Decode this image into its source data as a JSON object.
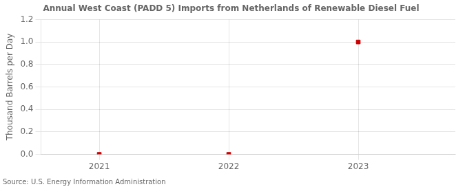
{
  "chart_data": {
    "type": "scatter",
    "title": "Annual West Coast (PADD 5) Imports from Netherlands of Renewable Diesel Fuel",
    "ylabel": "Thousand Barrels per Day",
    "annotations": [
      "Source: U.S. Energy Information Administration"
    ],
    "x": [
      2021,
      2022,
      2023
    ],
    "values": [
      0.0,
      0.0,
      1.0
    ],
    "color": "#cc0000",
    "marker": "square",
    "xlim": [
      2020.55,
      2023.75
    ],
    "xticks": [
      2021,
      2022,
      2023
    ],
    "ylim": [
      0.0,
      1.2
    ],
    "yticks": [
      {
        "value": 0.0,
        "label": "0.0"
      },
      0.2,
      0.4,
      0.6,
      0.8,
      {
        "value": 1.0,
        "label": "1.0"
      },
      1.2
    ],
    "grid": true
  }
}
